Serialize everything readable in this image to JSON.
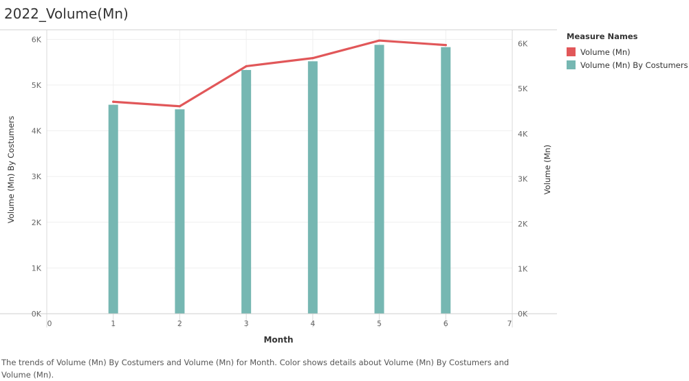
{
  "title": "2022_Volume(Mn)",
  "legend": {
    "title": "Measure Names",
    "items": [
      {
        "label": "Volume (Mn)",
        "color": "#e15759"
      },
      {
        "label": "Volume (Mn) By Costumers",
        "color": "#76b7b2"
      }
    ]
  },
  "caption": "The trends of Volume (Mn) By Costumers and Volume (Mn) for Month.  Color shows details about Volume (Mn) By Costumers and Volume (Mn).",
  "chart_data": {
    "type": "bar",
    "combo": "bar+line (dual axis)",
    "xlabel": "Month",
    "ylabel_left": "Volume (Mn) By Costumers",
    "ylabel_right": "Volume (Mn)",
    "xlim": [
      0,
      7
    ],
    "x_ticks": [
      "0",
      "1",
      "2",
      "3",
      "4",
      "5",
      "6",
      "7"
    ],
    "ylim_left": [
      0,
      6200
    ],
    "ylim_right": [
      0,
      6300
    ],
    "y_ticks_left": [
      "0K",
      "1K",
      "2K",
      "3K",
      "4K",
      "5K",
      "6K"
    ],
    "y_ticks_right": [
      "0K",
      "1K",
      "2K",
      "3K",
      "4K",
      "5K",
      "6K"
    ],
    "grid": true,
    "legend_position": "right",
    "x": [
      1,
      2,
      3,
      4,
      5,
      6
    ],
    "series": [
      {
        "name": "Volume (Mn) By Costumers",
        "kind": "bar",
        "axis": "left",
        "color": "#76b7b2",
        "values": [
          4570,
          4470,
          5330,
          5520,
          5880,
          5830
        ]
      },
      {
        "name": "Volume (Mn)",
        "kind": "line",
        "axis": "right",
        "color": "#e15759",
        "values": [
          4710,
          4610,
          5500,
          5680,
          6070,
          5970
        ]
      }
    ]
  }
}
